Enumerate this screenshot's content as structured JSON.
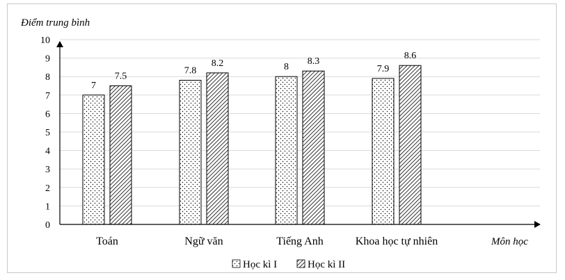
{
  "chart_data": {
    "type": "bar",
    "ylabel": "Điểm trung bình",
    "xlabel": "Môn học",
    "categories": [
      "Toán",
      "Ngữ văn",
      "Tiếng Anh",
      "Khoa học tự nhiên"
    ],
    "series": [
      {
        "name": "Học kì I",
        "values": [
          7,
          7.8,
          8,
          7.9
        ],
        "labels": [
          "7",
          "7.8",
          "8",
          "7.9"
        ],
        "pattern": "dots"
      },
      {
        "name": "Học kì II",
        "values": [
          7.5,
          8.2,
          8.3,
          8.6
        ],
        "labels": [
          "7.5",
          "8.2",
          "8.3",
          "8.6"
        ],
        "pattern": "diagonal-hatch"
      }
    ],
    "ylim": [
      0,
      10
    ],
    "yticks": [
      "0",
      "1",
      "2",
      "3",
      "4",
      "5",
      "6",
      "7",
      "8",
      "9",
      "10"
    ],
    "grid": true,
    "legend_position": "bottom-center",
    "colors": {
      "grid": "#d9d9d9",
      "axis": "#000000",
      "bar_fill": "#ffffff",
      "bar_edge": "#000000"
    }
  }
}
